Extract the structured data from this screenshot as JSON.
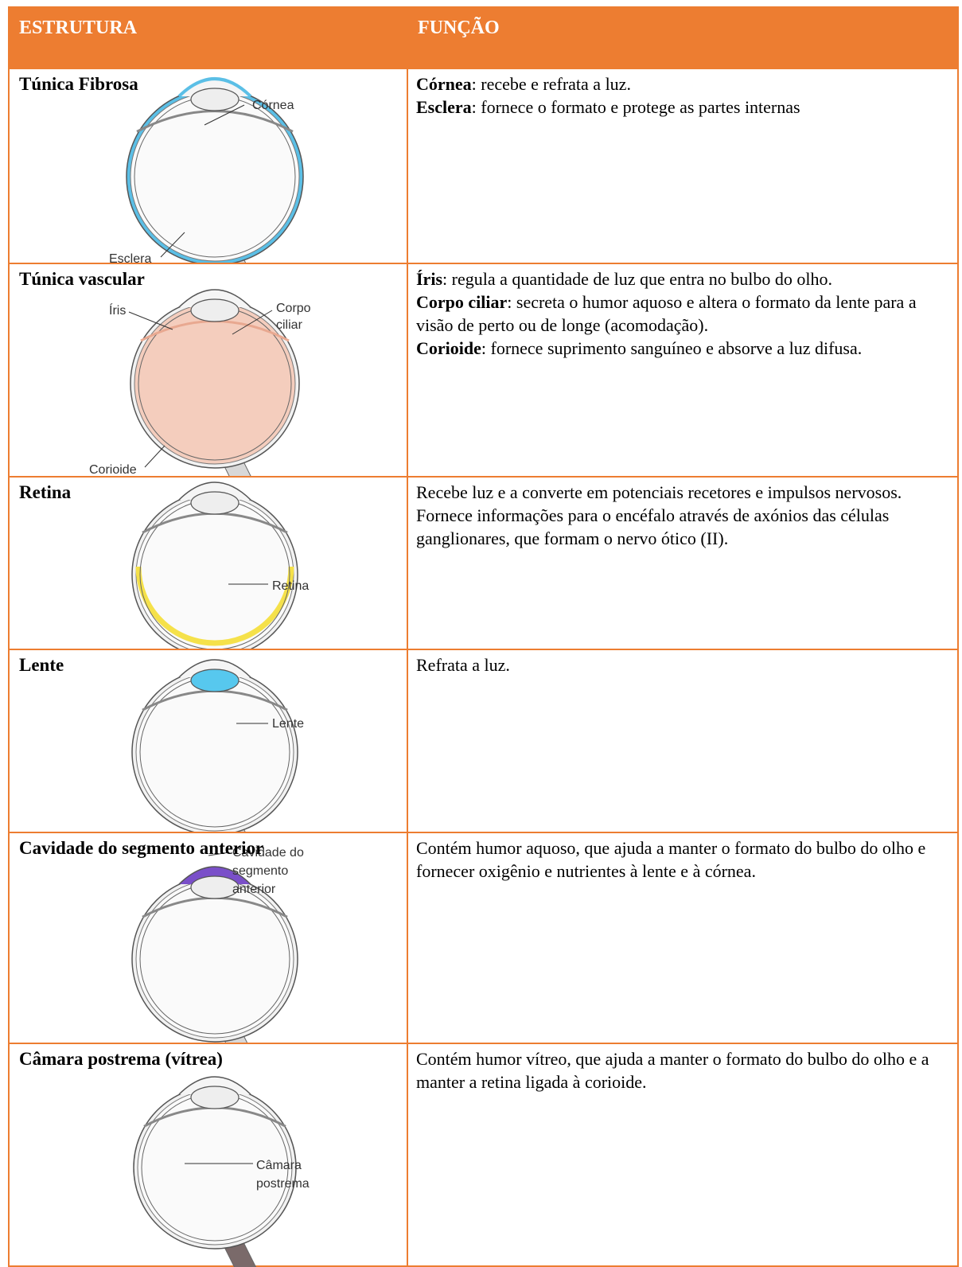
{
  "table": {
    "header": [
      "ESTRUTURA",
      "FUNÇÃO"
    ],
    "rows": [
      {
        "structure": "Túnica Fibrosa",
        "labels": [
          [
            "Córnea"
          ],
          [
            "Esclera"
          ]
        ],
        "function": [
          {
            "term": "Córnea",
            "text": ": recebe e refrata a luz."
          },
          {
            "term": "Esclera",
            "text": ": fornece o formato e protege as partes internas"
          }
        ]
      },
      {
        "structure": "Túnica vascular",
        "labels": [
          [
            "Íris"
          ],
          [
            "Corpo",
            "ciliar"
          ],
          [
            "Corioide"
          ]
        ],
        "function": [
          {
            "term": "Íris",
            "text": ": regula a quantidade de luz que entra no bulbo do olho."
          },
          {
            "term": "Corpo ciliar",
            "text": ": secreta o humor aquoso e altera o formato da lente para a visão de perto ou de longe (acomodação)."
          },
          {
            "term": "Corioide",
            "text": ": fornece suprimento sanguíneo e absorve a luz difusa."
          }
        ]
      },
      {
        "structure": "Retina",
        "labels": [
          [
            "Retina"
          ]
        ],
        "function": [
          {
            "text": "Recebe luz e a converte em potenciais recetores e impulsos nervosos. Fornece informações para o encéfalo através de axónios das células ganglionares, que formam o nervo ótico (II)."
          }
        ]
      },
      {
        "structure": "Lente",
        "labels": [
          [
            "Lente"
          ]
        ],
        "function": [
          {
            "text": "Refrata a luz."
          }
        ]
      },
      {
        "structure": "Cavidade do segmento anterior",
        "labels": [
          [
            "Cavidade do",
            "segmento",
            "anterior"
          ]
        ],
        "function": [
          {
            "text": "Contém humor aquoso, que ajuda a manter o formato do bulbo do olho e fornecer oxigênio e nutrientes à lente e à córnea."
          }
        ]
      },
      {
        "structure": "Câmara postrema (vítrea)",
        "labels": [
          [
            "Câmara",
            "postrema"
          ]
        ],
        "function": [
          {
            "text": "Contém humor vítreo, que ajuda a manter o formato do bulbo do olho e a manter a retina ligada à corioide."
          }
        ]
      }
    ]
  }
}
